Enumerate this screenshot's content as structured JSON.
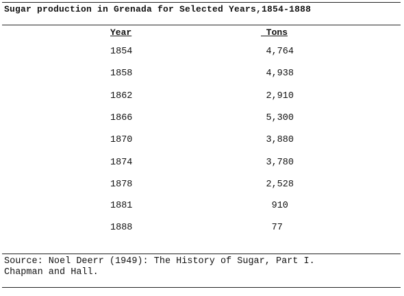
{
  "title": "Sugar production in Grenada for Selected Years,1854-1888",
  "columns": {
    "year": "Year",
    "tons": " Tons"
  },
  "rows": [
    {
      "year": "1854",
      "tons": "4,764"
    },
    {
      "year": "1858",
      "tons": "4,938"
    },
    {
      "year": "1862",
      "tons": "2,910"
    },
    {
      "year": "1866",
      "tons": "5,300"
    },
    {
      "year": "1870",
      "tons": "3,880"
    },
    {
      "year": "1874",
      "tons": "3,780"
    },
    {
      "year": "1878",
      "tons": "2,528"
    },
    {
      "year": "1881",
      "tons": "910 "
    },
    {
      "year": "1888",
      "tons": "77  "
    }
  ],
  "source_line1": "Source: Noel Deerr (1949): The History of Sugar, Part I.",
  "source_line2": "Chapman and Hall."
}
